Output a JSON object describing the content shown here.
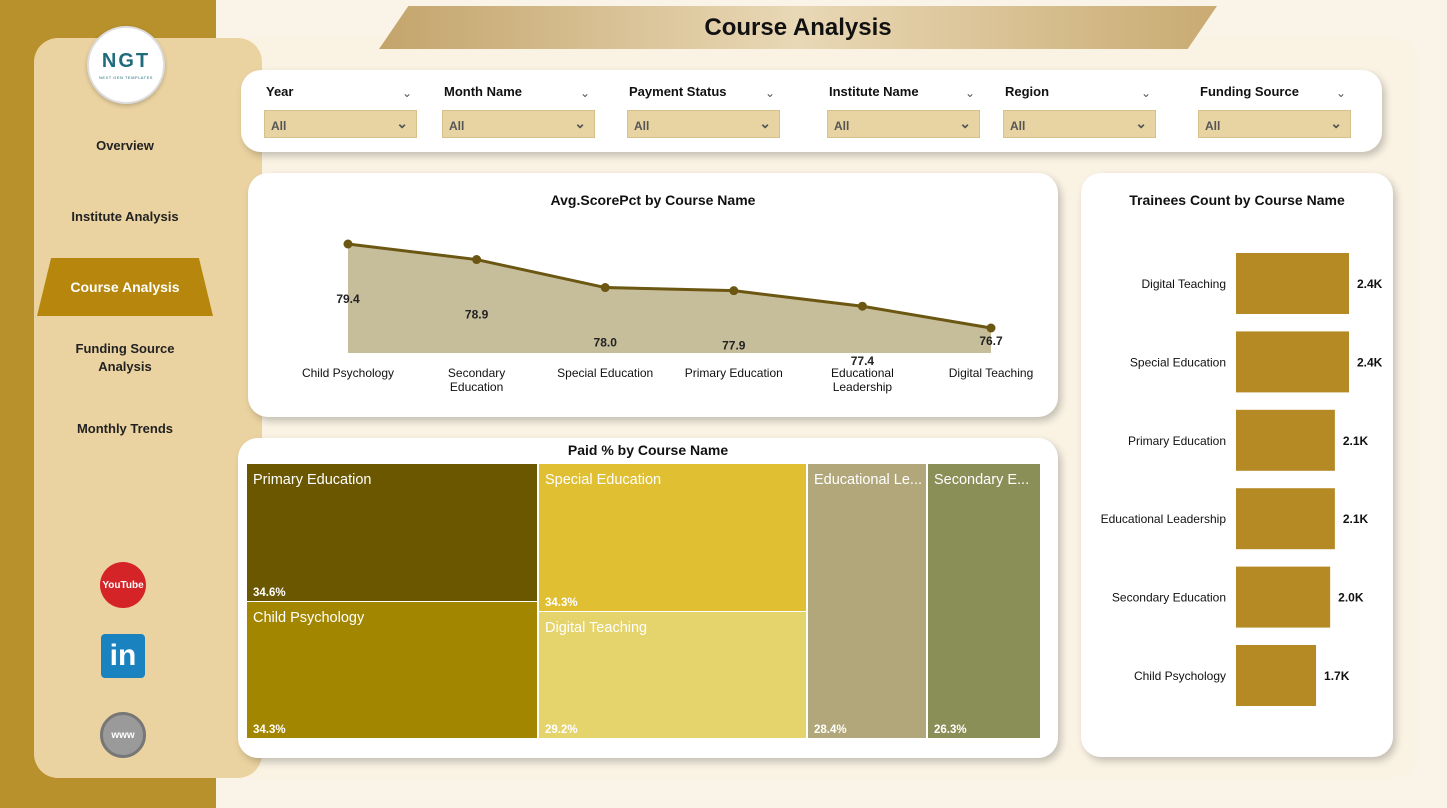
{
  "title": "Course Analysis",
  "logo": {
    "text": "NGT",
    "subtext": "NEXT GEN TEMPLATES"
  },
  "nav": {
    "items": [
      "Overview",
      "Institute Analysis",
      "Course Analysis",
      "Funding Source Analysis",
      "Monthly Trends"
    ],
    "active": "Course Analysis"
  },
  "social": {
    "youtube": "YouTube",
    "linkedin": "in",
    "website": "www"
  },
  "filters": [
    {
      "label": "Year",
      "value": "All"
    },
    {
      "label": "Month Name",
      "value": "All"
    },
    {
      "label": "Payment Status",
      "value": "All"
    },
    {
      "label": "Institute Name",
      "value": "All"
    },
    {
      "label": "Region",
      "value": "All"
    },
    {
      "label": "Funding Source",
      "value": "All"
    }
  ],
  "colors": {
    "accent": "#b6870c",
    "line": "#6b5712",
    "area": "#c6bd9b",
    "bar": "#b58a25"
  },
  "chart_data": [
    {
      "type": "area",
      "title": "Avg.ScorePct by Course Name",
      "categories": [
        "Child Psychology",
        "Secondary Education",
        "Special Education",
        "Primary Education",
        "Educational Leadership",
        "Digital Teaching"
      ],
      "category_lines": [
        [
          "Child Psychology"
        ],
        [
          "Secondary",
          "Education"
        ],
        [
          "Special Education"
        ],
        [
          "Primary Education"
        ],
        [
          "Educational",
          "Leadership"
        ],
        [
          "Digital Teaching"
        ]
      ],
      "values": [
        79.4,
        78.9,
        78.0,
        77.9,
        77.4,
        76.7
      ],
      "labels": [
        "79.4",
        "78.9",
        "78.0",
        "77.9",
        "77.4",
        "76.7"
      ]
    },
    {
      "type": "treemap",
      "title": "Paid % by Course Name",
      "items": [
        {
          "name": "Primary Education",
          "display": "Primary Education",
          "value": 34.6,
          "label": "34.6%",
          "color": "#6b5700"
        },
        {
          "name": "Child Psychology",
          "display": "Child Psychology",
          "value": 34.3,
          "label": "34.3%",
          "color": "#a38600"
        },
        {
          "name": "Special Education",
          "display": "Special Education",
          "value": 34.3,
          "label": "34.3%",
          "color": "#e0bf33"
        },
        {
          "name": "Digital Teaching",
          "display": "Digital Teaching",
          "value": 29.2,
          "label": "29.2%",
          "color": "#e5d36b"
        },
        {
          "name": "Educational Leadership",
          "display": "Educational Le...",
          "value": 28.4,
          "label": "28.4%",
          "color": "#b1a77b"
        },
        {
          "name": "Secondary Education",
          "display": "Secondary E...",
          "value": 26.3,
          "label": "26.3%",
          "color": "#8a8f58"
        }
      ]
    },
    {
      "type": "bar",
      "orientation": "horizontal",
      "title": "Trainees Count by Course Name",
      "categories": [
        "Digital Teaching",
        "Special Education",
        "Primary Education",
        "Educational Leadership",
        "Secondary Education",
        "Child Psychology"
      ],
      "values": [
        2400,
        2400,
        2100,
        2100,
        2000,
        1700
      ],
      "labels": [
        "2.4K",
        "2.4K",
        "2.1K",
        "2.1K",
        "2.0K",
        "1.7K"
      ]
    }
  ]
}
